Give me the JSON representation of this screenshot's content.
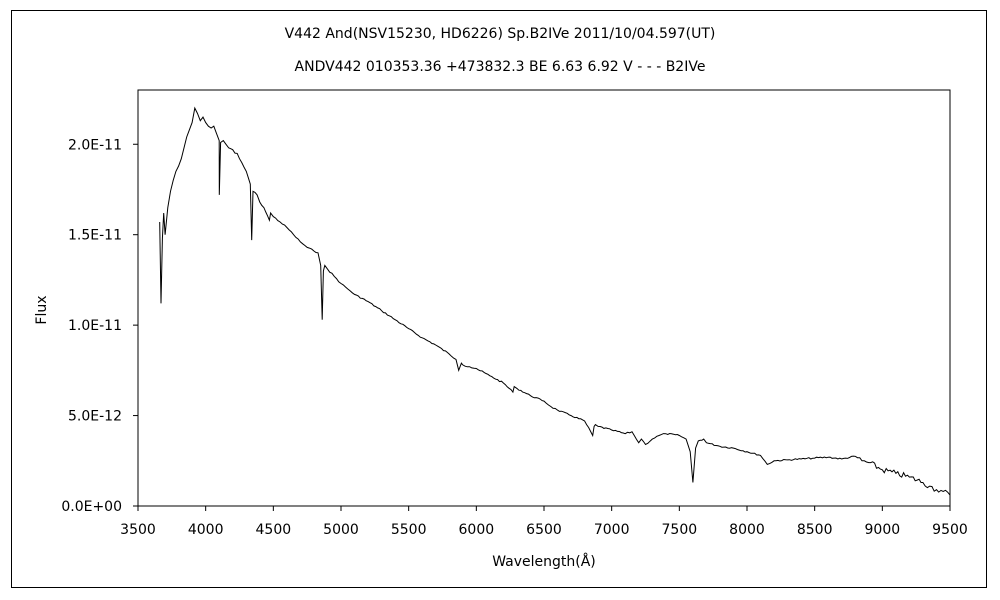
{
  "chart_data": {
    "type": "line",
    "title": "V442 And(NSV15230,  HD6226)    Sp.B2IVe    2011/10/04.597(UT)",
    "subtitle": "ANDV442 010353.36 +473832.3 BE 6.63 6.92 V - - - B2IVe",
    "xlabel": "Wavelength(Å)",
    "ylabel": "Flux",
    "xlim": [
      3500,
      9500
    ],
    "ylim": [
      0,
      2.3e-11
    ],
    "x_ticks": [
      "3500",
      "4000",
      "4500",
      "5000",
      "5500",
      "6000",
      "6500",
      "7000",
      "7500",
      "8000",
      "8500",
      "9000",
      "9500"
    ],
    "y_ticks": [
      "0.0E+00",
      "5.0E-12",
      "1.0E-11",
      "1.5E-11",
      "2.0E-11"
    ],
    "grid": false,
    "series": [
      {
        "color": "#000000",
        "x": [
          3660,
          3670,
          3680,
          3690,
          3700,
          3720,
          3740,
          3760,
          3780,
          3800,
          3820,
          3840,
          3860,
          3880,
          3900,
          3920,
          3940,
          3960,
          3980,
          4000,
          4020,
          4040,
          4060,
          4080,
          4100,
          4101,
          4110,
          4130,
          4150,
          4170,
          4200,
          4250,
          4300,
          4330,
          4340,
          4350,
          4380,
          4400,
          4430,
          4471,
          4480,
          4500,
          4550,
          4600,
          4650,
          4700,
          4750,
          4800,
          4830,
          4850,
          4861,
          4870,
          4880,
          4900,
          4950,
          5000,
          5050,
          5100,
          5200,
          5300,
          5400,
          5500,
          5600,
          5700,
          5800,
          5850,
          5870,
          5890,
          5900,
          5950,
          6000,
          6100,
          6200,
          6270,
          6280,
          6300,
          6400,
          6500,
          6550,
          6600,
          6700,
          6800,
          6860,
          6870,
          6880,
          6900,
          7000,
          7100,
          7150,
          7200,
          7220,
          7250,
          7300,
          7350,
          7400,
          7500,
          7550,
          7580,
          7600,
          7620,
          7640,
          7680,
          7700,
          7800,
          7900,
          8000,
          8100,
          8150,
          8200,
          8300,
          8400,
          8500,
          8600,
          8700,
          8800,
          8850,
          8900,
          9000,
          9100,
          9200,
          9300,
          9350,
          9400,
          9450,
          9500
        ],
        "y": [
          1.57e-11,
          1.12e-11,
          1.48e-11,
          1.62e-11,
          1.5e-11,
          1.65e-11,
          1.74e-11,
          1.8e-11,
          1.85e-11,
          1.88e-11,
          1.92e-11,
          1.98e-11,
          2.04e-11,
          2.08e-11,
          2.12e-11,
          2.2e-11,
          2.17e-11,
          2.13e-11,
          2.15e-11,
          2.12e-11,
          2.1e-11,
          2.09e-11,
          2.1e-11,
          2.06e-11,
          2.02e-11,
          1.72e-11,
          2.01e-11,
          2.02e-11,
          2e-11,
          1.98e-11,
          1.97e-11,
          1.92e-11,
          1.85e-11,
          1.78e-11,
          1.47e-11,
          1.74e-11,
          1.72e-11,
          1.68e-11,
          1.65e-11,
          1.58e-11,
          1.62e-11,
          1.6e-11,
          1.57e-11,
          1.54e-11,
          1.5e-11,
          1.46e-11,
          1.43e-11,
          1.41e-11,
          1.4e-11,
          1.33e-11,
          1.03e-11,
          1.3e-11,
          1.33e-11,
          1.31e-11,
          1.27e-11,
          1.23e-11,
          1.2e-11,
          1.17e-11,
          1.13e-11,
          1.08e-11,
          1.03e-11,
          9.8e-12,
          9.3e-12,
          8.9e-12,
          8.4e-12,
          8.1e-12,
          7.5e-12,
          7.9e-12,
          7.8e-12,
          7.7e-12,
          7.6e-12,
          7.2e-12,
          6.8e-12,
          6.3e-12,
          6.6e-12,
          6.5e-12,
          6.1e-12,
          5.8e-12,
          5.5e-12,
          5.3e-12,
          5e-12,
          4.7e-12,
          3.9e-12,
          4.4e-12,
          4.5e-12,
          4.4e-12,
          4.2e-12,
          4e-12,
          4.1e-12,
          3.5e-12,
          3.7e-12,
          3.4e-12,
          3.7e-12,
          3.9e-12,
          4e-12,
          3.9e-12,
          3.7e-12,
          3e-12,
          1.3e-12,
          3.2e-12,
          3.6e-12,
          3.7e-12,
          3.5e-12,
          3.3e-12,
          3.2e-12,
          3e-12,
          2.8e-12,
          2.3e-12,
          2.5e-12,
          2.55e-12,
          2.6e-12,
          2.65e-12,
          2.7e-12,
          2.6e-12,
          2.75e-12,
          2.5e-12,
          2.4e-12,
          2e-12,
          1.8e-12,
          1.6e-12,
          1.3e-12,
          1.1e-12,
          9e-13,
          8e-13,
          6e-13
        ]
      }
    ]
  }
}
